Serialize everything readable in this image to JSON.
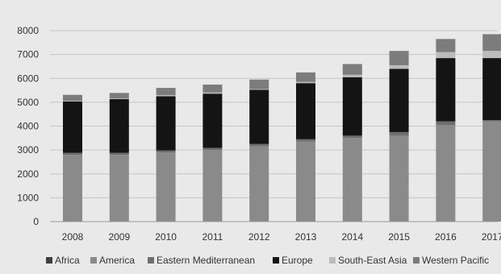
{
  "chart_data": {
    "type": "bar",
    "stacked": true,
    "categories": [
      "2008",
      "2009",
      "2010",
      "2011",
      "2012",
      "2013",
      "2014",
      "2015",
      "2016",
      "2017"
    ],
    "y_ticks": [
      "0",
      "1000",
      "2000",
      "3000",
      "4000",
      "5000",
      "6000",
      "7000",
      "8000"
    ],
    "ylim": [
      0,
      8000
    ],
    "grid": true,
    "legend_position": "bottom",
    "series": [
      {
        "name": "Africa",
        "color": "#404040",
        "values": [
          0,
          0,
          0,
          0,
          0,
          0,
          0,
          0,
          0,
          0
        ]
      },
      {
        "name": "America",
        "color": "#8a8a8a",
        "values": [
          2800,
          2800,
          2900,
          3000,
          3150,
          3350,
          3500,
          3600,
          4050,
          4200
        ]
      },
      {
        "name": "Eastern Mediterranean",
        "color": "#6e6e6e",
        "values": [
          80,
          80,
          80,
          90,
          100,
          100,
          100,
          150,
          150,
          50
        ]
      },
      {
        "name": "Europe",
        "color": "#141414",
        "values": [
          2150,
          2250,
          2270,
          2270,
          2270,
          2350,
          2450,
          2650,
          2650,
          2600
        ]
      },
      {
        "name": "South-East Asia",
        "color": "#bcbcbc",
        "values": [
          30,
          30,
          50,
          50,
          30,
          50,
          100,
          150,
          250,
          300
        ]
      },
      {
        "name": "Western Pacific",
        "color": "#7c7c7c",
        "values": [
          250,
          230,
          300,
          330,
          400,
          400,
          450,
          600,
          550,
          700
        ]
      }
    ]
  }
}
